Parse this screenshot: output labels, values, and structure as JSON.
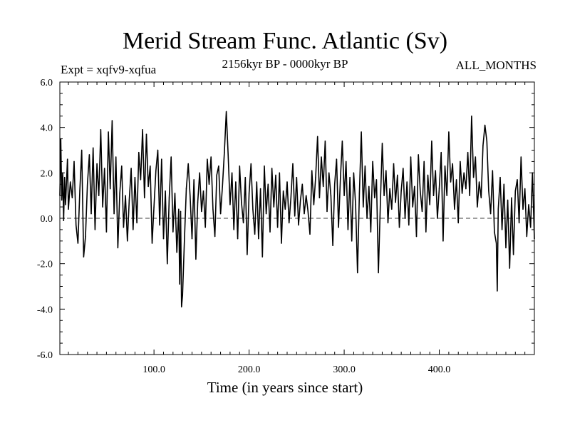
{
  "chart_data": {
    "type": "line",
    "title": "Merid Stream Func. Atlantic (Sv)",
    "subtitle": "2156kyr BP - 0000kyr BP",
    "left_note": "Expt = xqfv9-xqfua",
    "right_note": "ALL_MONTHS",
    "xlabel": "Time (in years since start)",
    "ylabel": "",
    "xlim": [
      1,
      500
    ],
    "ylim": [
      -6,
      6
    ],
    "x_ticks": [
      {
        "value": 100,
        "label": "100.0"
      },
      {
        "value": 200,
        "label": "200.0"
      },
      {
        "value": 300,
        "label": "300.0"
      },
      {
        "value": 400,
        "label": "400.0"
      }
    ],
    "y_ticks": [
      {
        "value": 6,
        "label": "6.0"
      },
      {
        "value": 4,
        "label": "4.0"
      },
      {
        "value": 2,
        "label": "2.0"
      },
      {
        "value": 0,
        "label": "0.0"
      },
      {
        "value": -2,
        "label": "-2.0"
      },
      {
        "value": -4,
        "label": "-4.0"
      },
      {
        "value": -6,
        "label": "-6.0"
      }
    ],
    "zero_line": {
      "value": 0,
      "style": "dashed"
    },
    "grid": false,
    "series": [
      {
        "name": "Merid Stream Func. Atlantic",
        "color": "#000000",
        "points": [
          [
            1,
            1.0
          ],
          [
            2,
            3.5
          ],
          [
            3,
            0.8
          ],
          [
            4,
            2.0
          ],
          [
            5,
            -0.1
          ],
          [
            6,
            1.8
          ],
          [
            7,
            0.6
          ],
          [
            9,
            2.6
          ],
          [
            10,
            0.4
          ],
          [
            12,
            1.6
          ],
          [
            14,
            0.9
          ],
          [
            16,
            2.5
          ],
          [
            18,
            -0.3
          ],
          [
            20,
            -1.1
          ],
          [
            22,
            1.2
          ],
          [
            24,
            3.0
          ],
          [
            26,
            -1.7
          ],
          [
            28,
            -0.8
          ],
          [
            30,
            1.5
          ],
          [
            32,
            2.8
          ],
          [
            34,
            0.2
          ],
          [
            36,
            3.1
          ],
          [
            38,
            -0.5
          ],
          [
            40,
            2.4
          ],
          [
            42,
            1.0
          ],
          [
            44,
            3.9
          ],
          [
            46,
            0.5
          ],
          [
            48,
            2.2
          ],
          [
            50,
            -0.6
          ],
          [
            52,
            3.8
          ],
          [
            54,
            1.3
          ],
          [
            56,
            4.3
          ],
          [
            58,
            0.2
          ],
          [
            60,
            2.7
          ],
          [
            62,
            -1.3
          ],
          [
            64,
            1.1
          ],
          [
            66,
            2.3
          ],
          [
            68,
            -0.4
          ],
          [
            70,
            1.0
          ],
          [
            72,
            -1.0
          ],
          [
            74,
            0.8
          ],
          [
            76,
            2.2
          ],
          [
            78,
            -0.5
          ],
          [
            80,
            1.8
          ],
          [
            82,
            -0.2
          ],
          [
            84,
            2.9
          ],
          [
            86,
            1.7
          ],
          [
            88,
            3.9
          ],
          [
            90,
            0.9
          ],
          [
            92,
            3.7
          ],
          [
            94,
            1.4
          ],
          [
            96,
            2.3
          ],
          [
            98,
            -1.1
          ],
          [
            100,
            0.5
          ],
          [
            102,
            2.1
          ],
          [
            104,
            3.0
          ],
          [
            106,
            -0.3
          ],
          [
            108,
            2.6
          ],
          [
            110,
            -0.9
          ],
          [
            112,
            1.2
          ],
          [
            114,
            -2.0
          ],
          [
            116,
            0.9
          ],
          [
            118,
            2.7
          ],
          [
            120,
            -0.6
          ],
          [
            122,
            1.1
          ],
          [
            124,
            -1.5
          ],
          [
            126,
            0.4
          ],
          [
            127,
            -2.9
          ],
          [
            128,
            0.3
          ],
          [
            129,
            -3.9
          ],
          [
            130,
            -3.4
          ],
          [
            132,
            -1.0
          ],
          [
            134,
            1.3
          ],
          [
            136,
            2.4
          ],
          [
            138,
            1.0
          ],
          [
            140,
            -0.9
          ],
          [
            142,
            1.7
          ],
          [
            144,
            -1.8
          ],
          [
            146,
            0.7
          ],
          [
            148,
            2.0
          ],
          [
            150,
            0.3
          ],
          [
            152,
            1.2
          ],
          [
            154,
            -0.4
          ],
          [
            156,
            2.6
          ],
          [
            158,
            1.5
          ],
          [
            160,
            2.7
          ],
          [
            162,
            0.4
          ],
          [
            164,
            -0.8
          ],
          [
            166,
            1.9
          ],
          [
            168,
            2.3
          ],
          [
            170,
            0.2
          ],
          [
            172,
            1.4
          ],
          [
            174,
            2.9
          ],
          [
            176,
            4.7
          ],
          [
            178,
            2.8
          ],
          [
            180,
            0.6
          ],
          [
            182,
            2.0
          ],
          [
            184,
            -0.5
          ],
          [
            186,
            1.6
          ],
          [
            188,
            -0.9
          ],
          [
            190,
            2.3
          ],
          [
            192,
            0.7
          ],
          [
            194,
            -0.2
          ],
          [
            196,
            1.8
          ],
          [
            198,
            -1.6
          ],
          [
            200,
            1.1
          ],
          [
            202,
            2.4
          ],
          [
            204,
            0.4
          ],
          [
            206,
            -0.7
          ],
          [
            208,
            1.6
          ],
          [
            210,
            -0.9
          ],
          [
            212,
            1.3
          ],
          [
            214,
            -1.7
          ],
          [
            216,
            2.3
          ],
          [
            218,
            0.2
          ],
          [
            220,
            1.5
          ],
          [
            222,
            -0.6
          ],
          [
            224,
            2.2
          ],
          [
            226,
            0.5
          ],
          [
            228,
            1.9
          ],
          [
            230,
            -0.4
          ],
          [
            232,
            2.0
          ],
          [
            234,
            -1.1
          ],
          [
            236,
            1.2
          ],
          [
            238,
            0.4
          ],
          [
            240,
            1.6
          ],
          [
            242,
            -0.2
          ],
          [
            244,
            0.9
          ],
          [
            246,
            2.4
          ],
          [
            248,
            0.1
          ],
          [
            250,
            1.8
          ],
          [
            252,
            -0.3
          ],
          [
            254,
            0.8
          ],
          [
            256,
            1.5
          ],
          [
            258,
            0.2
          ],
          [
            260,
            1.0
          ],
          [
            262,
            0.3
          ],
          [
            264,
            -0.7
          ],
          [
            266,
            2.1
          ],
          [
            268,
            0.6
          ],
          [
            270,
            1.8
          ],
          [
            272,
            3.6
          ],
          [
            274,
            0.9
          ],
          [
            276,
            2.7
          ],
          [
            278,
            1.4
          ],
          [
            280,
            3.4
          ],
          [
            282,
            0.3
          ],
          [
            284,
            2.0
          ],
          [
            286,
            1.0
          ],
          [
            288,
            -1.2
          ],
          [
            290,
            1.5
          ],
          [
            292,
            2.6
          ],
          [
            294,
            -0.4
          ],
          [
            296,
            1.7
          ],
          [
            298,
            3.4
          ],
          [
            300,
            1.0
          ],
          [
            302,
            2.5
          ],
          [
            304,
            -0.5
          ],
          [
            306,
            1.8
          ],
          [
            308,
            -1.0
          ],
          [
            310,
            2.0
          ],
          [
            312,
            0.6
          ],
          [
            314,
            -2.4
          ],
          [
            316,
            1.1
          ],
          [
            318,
            3.8
          ],
          [
            320,
            0.5
          ],
          [
            322,
            2.3
          ],
          [
            324,
            0.0
          ],
          [
            326,
            1.4
          ],
          [
            328,
            -0.6
          ],
          [
            330,
            2.5
          ],
          [
            332,
            0.9
          ],
          [
            334,
            1.7
          ],
          [
            336,
            -2.4
          ],
          [
            338,
            0.6
          ],
          [
            340,
            3.3
          ],
          [
            342,
            1.0
          ],
          [
            344,
            2.1
          ],
          [
            346,
            -0.2
          ],
          [
            348,
            1.3
          ],
          [
            350,
            0.4
          ],
          [
            352,
            2.4
          ],
          [
            354,
            0.7
          ],
          [
            356,
            1.9
          ],
          [
            358,
            -0.4
          ],
          [
            360,
            1.2
          ],
          [
            362,
            2.2
          ],
          [
            364,
            0.0
          ],
          [
            366,
            1.6
          ],
          [
            368,
            -0.3
          ],
          [
            370,
            2.7
          ],
          [
            372,
            0.5
          ],
          [
            374,
            1.4
          ],
          [
            376,
            -0.8
          ],
          [
            378,
            2.8
          ],
          [
            380,
            1.2
          ],
          [
            382,
            0.3
          ],
          [
            384,
            2.5
          ],
          [
            386,
            -0.6
          ],
          [
            388,
            1.9
          ],
          [
            390,
            0.6
          ],
          [
            392,
            3.4
          ],
          [
            394,
            1.0
          ],
          [
            396,
            2.1
          ],
          [
            398,
            0.0
          ],
          [
            400,
            1.3
          ],
          [
            402,
            2.9
          ],
          [
            404,
            -1.0
          ],
          [
            406,
            2.3
          ],
          [
            408,
            1.0
          ],
          [
            410,
            3.8
          ],
          [
            412,
            1.6
          ],
          [
            414,
            2.4
          ],
          [
            416,
            0.4
          ],
          [
            418,
            1.7
          ],
          [
            420,
            -0.2
          ],
          [
            422,
            2.5
          ],
          [
            424,
            1.1
          ],
          [
            426,
            2.0
          ],
          [
            428,
            1.3
          ],
          [
            430,
            2.9
          ],
          [
            432,
            1.0
          ],
          [
            434,
            4.5
          ],
          [
            436,
            1.8
          ],
          [
            438,
            2.7
          ],
          [
            440,
            0.5
          ],
          [
            442,
            1.6
          ],
          [
            444,
            0.9
          ],
          [
            446,
            3.2
          ],
          [
            448,
            4.1
          ],
          [
            450,
            3.4
          ],
          [
            452,
            1.2
          ],
          [
            454,
            0.2
          ],
          [
            456,
            2.1
          ],
          [
            458,
            -0.6
          ],
          [
            460,
            -1.1
          ],
          [
            461,
            -3.2
          ],
          [
            462,
            0.4
          ],
          [
            464,
            1.8
          ],
          [
            466,
            -0.5
          ],
          [
            468,
            1.5
          ],
          [
            470,
            -1.3
          ],
          [
            472,
            0.8
          ],
          [
            474,
            -2.2
          ],
          [
            476,
            0.9
          ],
          [
            478,
            -1.6
          ],
          [
            480,
            1.2
          ],
          [
            482,
            1.7
          ],
          [
            484,
            -0.2
          ],
          [
            486,
            2.7
          ],
          [
            488,
            0.4
          ],
          [
            490,
            1.3
          ],
          [
            492,
            -0.8
          ],
          [
            494,
            0.6
          ],
          [
            496,
            -0.4
          ],
          [
            498,
            2.0
          ],
          [
            499,
            0.5
          ],
          [
            500,
            -0.9
          ]
        ]
      }
    ]
  }
}
